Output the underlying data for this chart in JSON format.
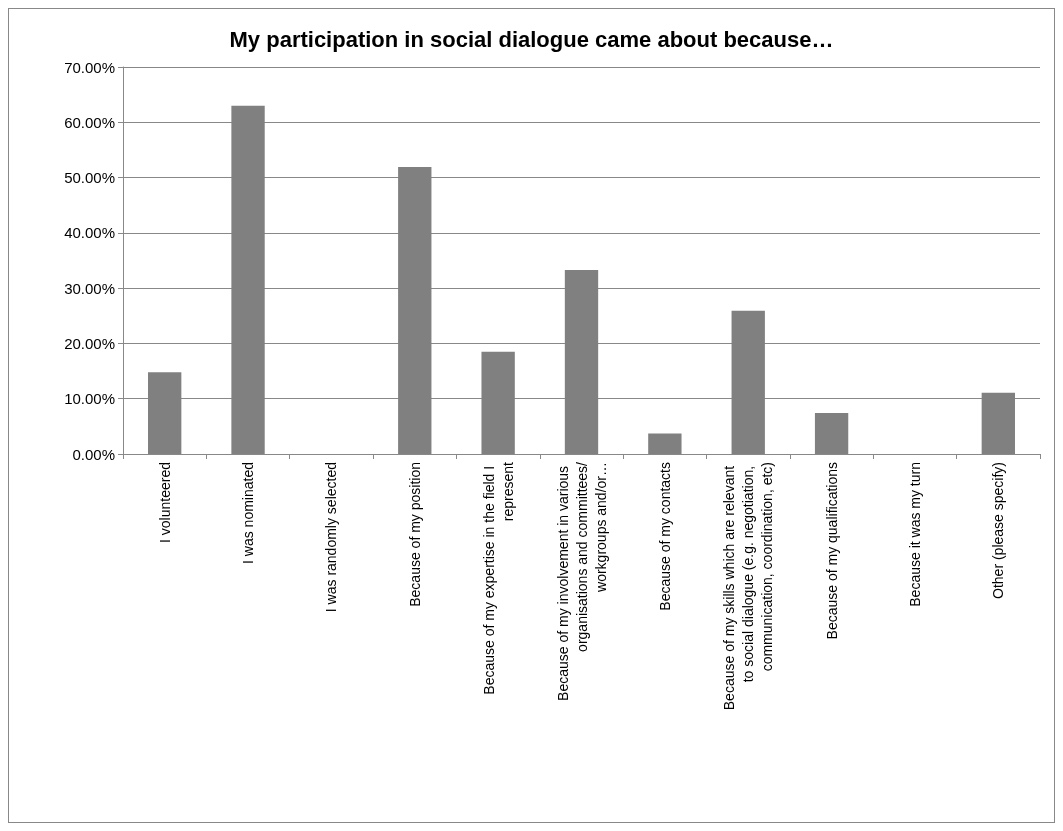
{
  "chart_data": {
    "type": "bar",
    "title": "My participation in social dialogue came about because…",
    "categories": [
      "I volunteered",
      "I was nominated",
      "I was randomly selected",
      "Because of my position",
      "Because of my expertise in the field I represent",
      "Because of my involvement in various organisations and committees/workgroups and/or…",
      "Because of my contacts",
      "Because of my skills which are relevant to social dialogue (e.g. negotiation, communication, coordination, etc)",
      "Because of my qualifications",
      "Because it was my turn",
      "Other (please specify)"
    ],
    "values": [
      14.8,
      63.0,
      0,
      51.9,
      18.5,
      33.3,
      3.7,
      25.9,
      7.4,
      0,
      11.1
    ],
    "color": "#808080",
    "ylim": [
      0,
      70
    ],
    "yticks": [
      {
        "value": 0,
        "label": "0.00%"
      },
      {
        "value": 10,
        "label": "10.00%"
      },
      {
        "value": 20,
        "label": "20.00%"
      },
      {
        "value": 30,
        "label": "30.00%"
      },
      {
        "value": 40,
        "label": "40.00%"
      },
      {
        "value": 50,
        "label": "50.00%"
      },
      {
        "value": 60,
        "label": "60.00%"
      },
      {
        "value": 70,
        "label": "70.00%"
      }
    ],
    "grid": "y"
  }
}
